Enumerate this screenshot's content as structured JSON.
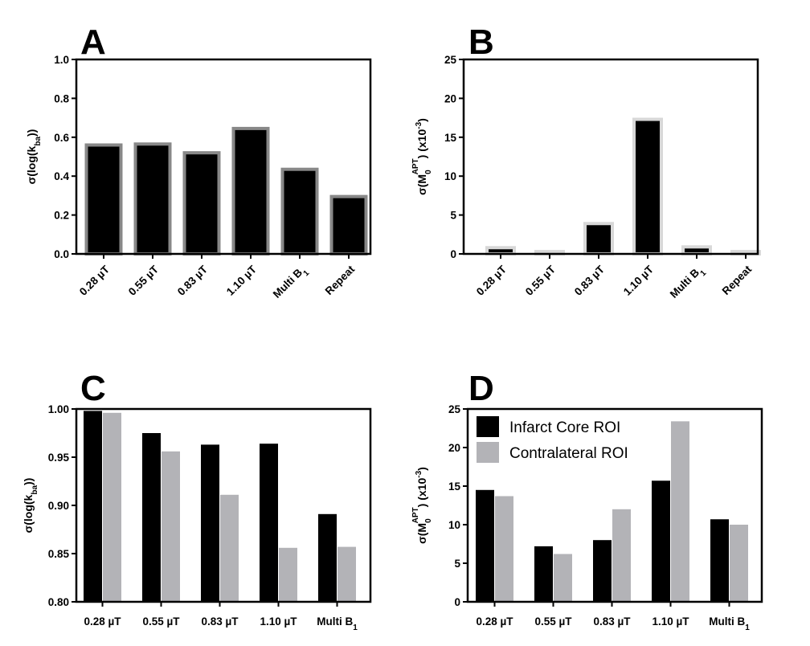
{
  "chart_data": [
    {
      "panel": "A",
      "type": "bar",
      "categories": [
        "0.28 µT",
        "0.55 µT",
        "0.83 µT",
        "1.10 µT",
        "Multi B",
        "Repeat"
      ],
      "category_subscripts": [
        "",
        "",
        "",
        "",
        "1",
        ""
      ],
      "values": [
        0.56,
        0.565,
        0.52,
        0.645,
        0.435,
        0.295
      ],
      "ylabel_parts": [
        "σ(log(k",
        "ba",
        "))"
      ],
      "ylim": [
        0,
        1.0
      ],
      "yticks": [
        "0.0",
        "0.2",
        "0.4",
        "0.6",
        "0.8",
        "1.0"
      ],
      "bar_fill": "#000000",
      "bar_outline": "#888888"
    },
    {
      "panel": "B",
      "type": "bar",
      "categories": [
        "0.28 µT",
        "0.55 µT",
        "0.83 µT",
        "1.10 µT",
        "Multi B",
        "Repeat"
      ],
      "category_subscripts": [
        "",
        "",
        "",
        "",
        "1",
        ""
      ],
      "values": [
        0.8,
        0.3,
        3.9,
        17.3,
        0.9,
        0.3
      ],
      "ylabel_parts": [
        "σ(M",
        "0",
        "APT",
        ") (x10",
        "-3",
        ")"
      ],
      "ylim": [
        0,
        25
      ],
      "yticks": [
        "0",
        "5",
        "10",
        "15",
        "20",
        "25"
      ],
      "bar_fill": "#000000",
      "bar_outline": "#d8d8d8"
    },
    {
      "panel": "C",
      "type": "bar",
      "categories": [
        "0.28 µT",
        "0.55 µT",
        "0.83 µT",
        "1.10 µT",
        "Multi B"
      ],
      "category_subscripts": [
        "",
        "",
        "",
        "",
        "1"
      ],
      "series": [
        {
          "name": "Infarct Core ROI",
          "color": "#000000",
          "values": [
            0.998,
            0.975,
            0.963,
            0.964,
            0.891
          ]
        },
        {
          "name": "Contralateral ROI",
          "color": "#b3b3b7",
          "values": [
            0.996,
            0.956,
            0.911,
            0.856,
            0.857
          ]
        }
      ],
      "ylabel_parts": [
        "σ(log(k",
        "ba",
        "))"
      ],
      "ylim": [
        0.8,
        1.0
      ],
      "yticks": [
        "0.80",
        "0.85",
        "0.90",
        "0.95",
        "1.00"
      ]
    },
    {
      "panel": "D",
      "type": "bar",
      "categories": [
        "0.28 µT",
        "0.55 µT",
        "0.83 µT",
        "1.10 µT",
        "Multi B"
      ],
      "category_subscripts": [
        "",
        "",
        "",
        "",
        "1"
      ],
      "series": [
        {
          "name": "Infarct Core ROI",
          "color": "#000000",
          "values": [
            14.5,
            7.2,
            8.0,
            15.7,
            10.7
          ]
        },
        {
          "name": "Contralateral ROI",
          "color": "#b3b3b7",
          "values": [
            13.7,
            6.2,
            12.0,
            23.4,
            10.0
          ]
        }
      ],
      "ylabel_parts": [
        "σ(M",
        "0",
        "APT",
        ") (x10",
        "-3",
        ")"
      ],
      "ylim": [
        0,
        25
      ],
      "yticks": [
        "0",
        "5",
        "10",
        "15",
        "20",
        "25"
      ],
      "legend": [
        "Infarct Core ROI",
        "Contralateral ROI"
      ],
      "legend_position": "top-left"
    }
  ]
}
